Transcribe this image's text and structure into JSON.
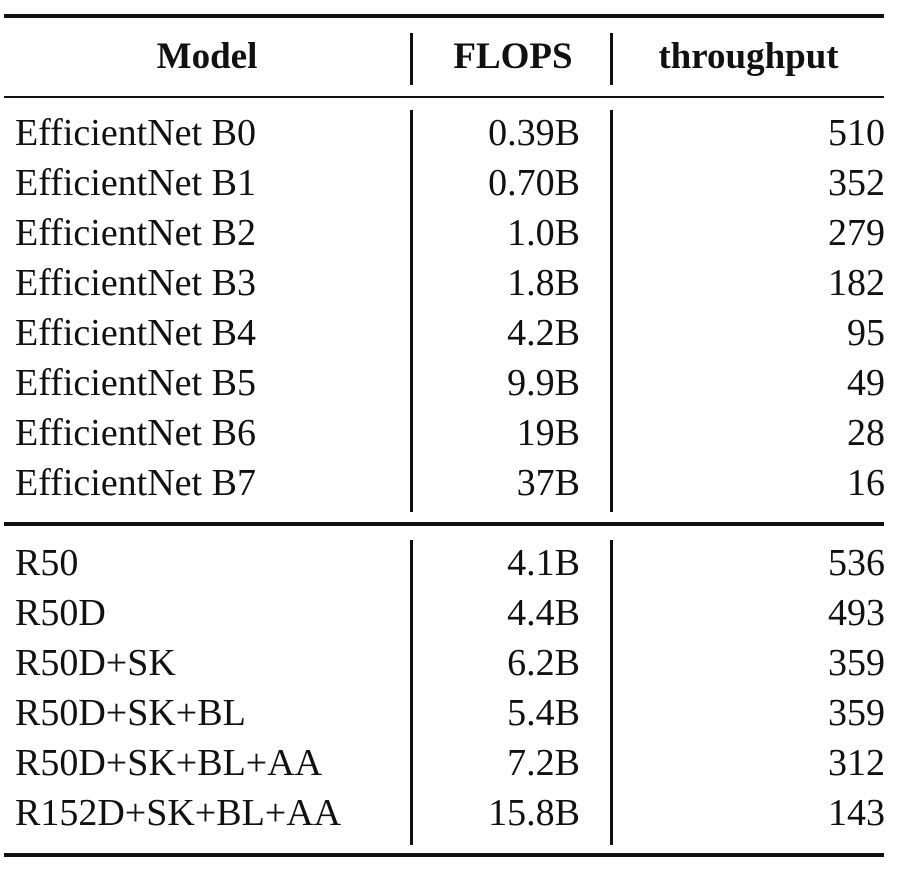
{
  "table": {
    "headers": {
      "model": "Model",
      "flops": "FLOPS",
      "throughput": "throughput"
    },
    "groups": [
      {
        "rows": [
          {
            "model": "EfficientNet B0",
            "flops": "0.39B",
            "throughput": "510"
          },
          {
            "model": "EfficientNet B1",
            "flops": "0.70B",
            "throughput": "352"
          },
          {
            "model": "EfficientNet B2",
            "flops": "1.0B",
            "throughput": "279"
          },
          {
            "model": "EfficientNet B3",
            "flops": "1.8B",
            "throughput": "182"
          },
          {
            "model": "EfficientNet B4",
            "flops": "4.2B",
            "throughput": "95"
          },
          {
            "model": "EfficientNet B5",
            "flops": "9.9B",
            "throughput": "49"
          },
          {
            "model": "EfficientNet B6",
            "flops": "19B",
            "throughput": "28"
          },
          {
            "model": "EfficientNet B7",
            "flops": "37B",
            "throughput": "16"
          }
        ]
      },
      {
        "rows": [
          {
            "model": "R50",
            "flops": "4.1B",
            "throughput": "536"
          },
          {
            "model": "R50D",
            "flops": "4.4B",
            "throughput": "493"
          },
          {
            "model": "R50D+SK",
            "flops": "6.2B",
            "throughput": "359"
          },
          {
            "model": "R50D+SK+BL",
            "flops": "5.4B",
            "throughput": "359"
          },
          {
            "model": "R50D+SK+BL+AA",
            "flops": "7.2B",
            "throughput": "312"
          },
          {
            "model": "R152D+SK+BL+AA",
            "flops": "15.8B",
            "throughput": "143"
          }
        ]
      }
    ]
  }
}
